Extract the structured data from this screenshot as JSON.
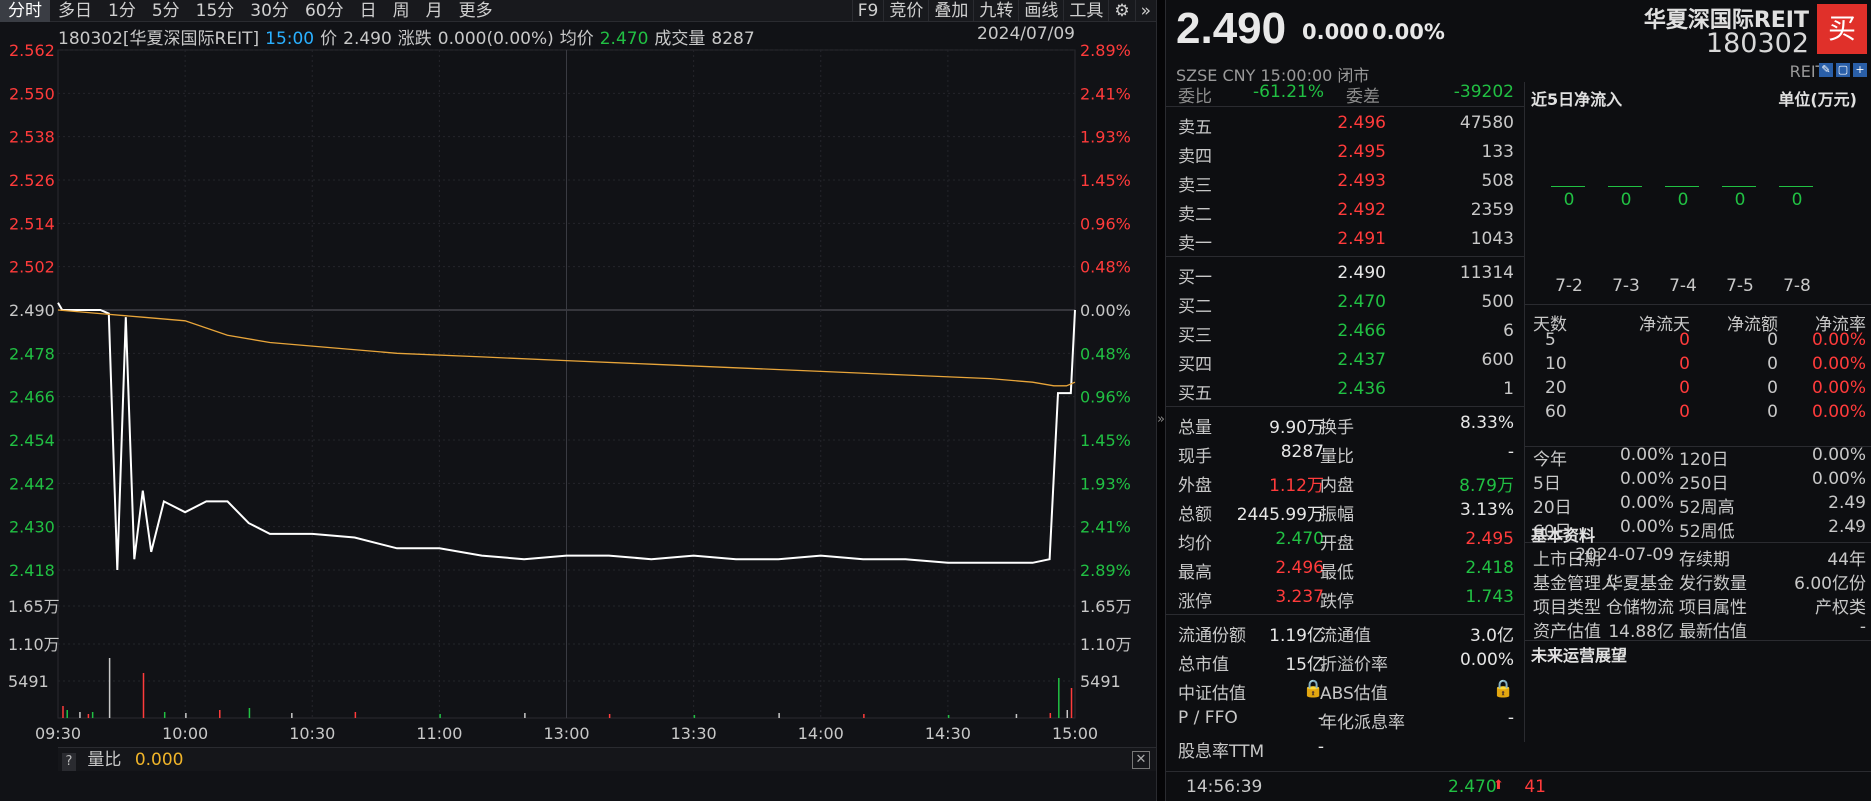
{
  "periods": [
    "分时",
    "多日",
    "1分",
    "5分",
    "15分",
    "30分",
    "60分",
    "日",
    "周",
    "月",
    "更多"
  ],
  "tools": [
    "F9",
    "竞价",
    "叠加",
    "九转",
    "画线",
    "工具",
    "⚙",
    "»"
  ],
  "info": {
    "code_name": "180302[华夏深国际REIT]",
    "time": "15:00",
    "price_label": "价",
    "price": "2.490",
    "change_label": "涨跌",
    "change": "0.000(0.00%)",
    "avg_label": "均价",
    "avg": "2.470",
    "vol_label": "成交量",
    "vol": "8287",
    "date": "2024/07/09"
  },
  "chart_data": {
    "type": "line",
    "price_ticks": [
      "2.562",
      "2.550",
      "2.538",
      "2.526",
      "2.514",
      "2.502",
      "2.490",
      "2.478",
      "2.466",
      "2.454",
      "2.442",
      "2.430",
      "2.418"
    ],
    "pct_ticks": [
      "2.89%",
      "2.41%",
      "1.93%",
      "1.45%",
      "0.96%",
      "0.48%",
      "0.00%",
      "0.48%",
      "0.96%",
      "1.45%",
      "1.93%",
      "2.41%",
      "2.89%"
    ],
    "vol_ticks": [
      "1.65万",
      "1.10万",
      "5491"
    ],
    "time_ticks": [
      "09:30",
      "10:00",
      "10:30",
      "11:00",
      "13:00",
      "13:30",
      "14:00",
      "14:30",
      "15:00"
    ],
    "ylim": [
      2.418,
      2.562
    ],
    "prev_close": 2.49,
    "series": [
      {
        "color": "#ffffff",
        "x": [
          0,
          1,
          2,
          3,
          4,
          5,
          6,
          7,
          8,
          9,
          10,
          12,
          14,
          16,
          18,
          20,
          22,
          25,
          30,
          35,
          40,
          45,
          50,
          55,
          60,
          70,
          80,
          90,
          100,
          110,
          120,
          130,
          140,
          150,
          160,
          170,
          180,
          190,
          200,
          210,
          220,
          230,
          234,
          236,
          238,
          239,
          240
        ],
        "values": [
          2.492,
          2.49,
          2.49,
          2.49,
          2.49,
          2.49,
          2.49,
          2.49,
          2.49,
          2.49,
          2.49,
          2.489,
          2.418,
          2.488,
          2.421,
          2.44,
          2.423,
          2.437,
          2.434,
          2.437,
          2.437,
          2.431,
          2.428,
          2.428,
          2.428,
          2.427,
          2.424,
          2.424,
          2.422,
          2.421,
          2.422,
          2.422,
          2.421,
          2.422,
          2.421,
          2.421,
          2.422,
          2.421,
          2.421,
          2.42,
          2.42,
          2.42,
          2.421,
          2.467,
          2.467,
          2.467,
          2.49
        ]
      },
      {
        "color": "#e8a53a",
        "x": [
          0,
          10,
          20,
          30,
          40,
          50,
          60,
          80,
          100,
          120,
          140,
          160,
          180,
          200,
          220,
          230,
          235,
          238,
          240
        ],
        "values": [
          2.49,
          2.489,
          2.488,
          2.487,
          2.483,
          2.481,
          2.48,
          2.478,
          2.477,
          2.476,
          2.475,
          2.474,
          2.473,
          2.472,
          2.471,
          2.47,
          2.469,
          2.469,
          2.47
        ]
      }
    ]
  },
  "bottom": {
    "label": "量比",
    "value": "0.000"
  },
  "quote": {
    "price": "2.490",
    "change": "0.000",
    "pct": "0.00%",
    "name": "华夏深国际REIT",
    "code": "180302",
    "buy": "买",
    "exchange": "SZSE  CNY  15:00:00  闭市",
    "type": "REITs"
  },
  "book": {
    "weibi_label": "委比",
    "weibi": "-61.21%",
    "weicha_label": "委差",
    "weicha": "-39202",
    "asks": [
      {
        "label": "卖五",
        "price": "2.496",
        "vol": "47580"
      },
      {
        "label": "卖四",
        "price": "2.495",
        "vol": "133"
      },
      {
        "label": "卖三",
        "price": "2.493",
        "vol": "508"
      },
      {
        "label": "卖二",
        "price": "2.492",
        "vol": "2359"
      },
      {
        "label": "卖一",
        "price": "2.491",
        "vol": "1043"
      }
    ],
    "bids": [
      {
        "label": "买一",
        "price": "2.490",
        "vol": "11314"
      },
      {
        "label": "买二",
        "price": "2.470",
        "vol": "500"
      },
      {
        "label": "买三",
        "price": "2.466",
        "vol": "6"
      },
      {
        "label": "买四",
        "price": "2.437",
        "vol": "600"
      },
      {
        "label": "买五",
        "price": "2.436",
        "vol": "1"
      }
    ]
  },
  "stats": [
    {
      "l1": "总量",
      "v1": "9.90万",
      "l2": "换手",
      "v2": "8.33%"
    },
    {
      "l1": "现手",
      "v1": "8287",
      "l2": "量比",
      "v2": "-"
    },
    {
      "l1": "外盘",
      "v1": "1.12万",
      "l2": "内盘",
      "v2": "8.79万"
    },
    {
      "l1": "总额",
      "v1": "2445.99万",
      "l2": "振幅",
      "v2": "3.13%"
    },
    {
      "l1": "均价",
      "v1": "2.470",
      "l2": "开盘",
      "v2": "2.495"
    },
    {
      "l1": "最高",
      "v1": "2.496",
      "l2": "最低",
      "v2": "2.418"
    },
    {
      "l1": "涨停",
      "v1": "3.237",
      "l2": "跌停",
      "v2": "1.743"
    }
  ],
  "fund": [
    {
      "l1": "流通份额",
      "v1": "1.19亿",
      "l2": "流通值",
      "v2": "3.0亿"
    },
    {
      "l1": "总市值",
      "v1": "15亿",
      "l2": "折溢价率",
      "v2": "0.00%"
    },
    {
      "l1": "中证估值",
      "v1": "🔒",
      "l2": "ABS估值",
      "v2": "🔒"
    },
    {
      "l1": "P / FFO",
      "v1": "-",
      "l2": "年化派息率",
      "v2": "-"
    },
    {
      "l1": "股息率TTM",
      "v1": "-",
      "l2": "",
      "v2": ""
    }
  ],
  "footer": {
    "time": "14:56:39",
    "price": "2.470",
    "arrow": "⬆",
    "vol": "41"
  },
  "flow": {
    "title": "近5日净流入",
    "unit": "单位(万元)",
    "days": [
      "7-2",
      "7-3",
      "7-4",
      "7-5",
      "7-8"
    ],
    "values": [
      "0",
      "0",
      "0",
      "0",
      "0"
    ],
    "headers": [
      "天数",
      "净流天",
      "净流额",
      "净流率"
    ],
    "rows": [
      {
        "d": "5",
        "a": "0",
        "b": "0",
        "c": "0.00%"
      },
      {
        "d": "10",
        "a": "0",
        "b": "0",
        "c": "0.00%"
      },
      {
        "d": "20",
        "a": "0",
        "b": "0",
        "c": "0.00%"
      },
      {
        "d": "60",
        "a": "0",
        "b": "0",
        "c": "0.00%"
      }
    ],
    "perf": [
      {
        "l1": "今年",
        "v1": "0.00%",
        "l2": "120日",
        "v2": "0.00%"
      },
      {
        "l1": "5日",
        "v1": "0.00%",
        "l2": "250日",
        "v2": "0.00%"
      },
      {
        "l1": "20日",
        "v1": "0.00%",
        "l2": "52周高",
        "v2": "2.49"
      },
      {
        "l1": "60日",
        "v1": "0.00%",
        "l2": "52周低",
        "v2": "2.49"
      }
    ],
    "basic_title": "基本资料",
    "more": "···",
    "basic": [
      {
        "l1": "上市日期",
        "v1": "2024-07-09",
        "l2": "存续期",
        "v2": "44年"
      },
      {
        "l1": "基金管理人",
        "v1": "华夏基金",
        "l2": "发行数量",
        "v2": "6.00亿份"
      },
      {
        "l1": "项目类型",
        "v1": "仓储物流",
        "l2": "项目属性",
        "v2": "产权类"
      },
      {
        "l1": "资产估值",
        "v1": "14.88亿",
        "l2": "最新估值",
        "v2": "-"
      }
    ],
    "future_title": "未来运营展望"
  }
}
